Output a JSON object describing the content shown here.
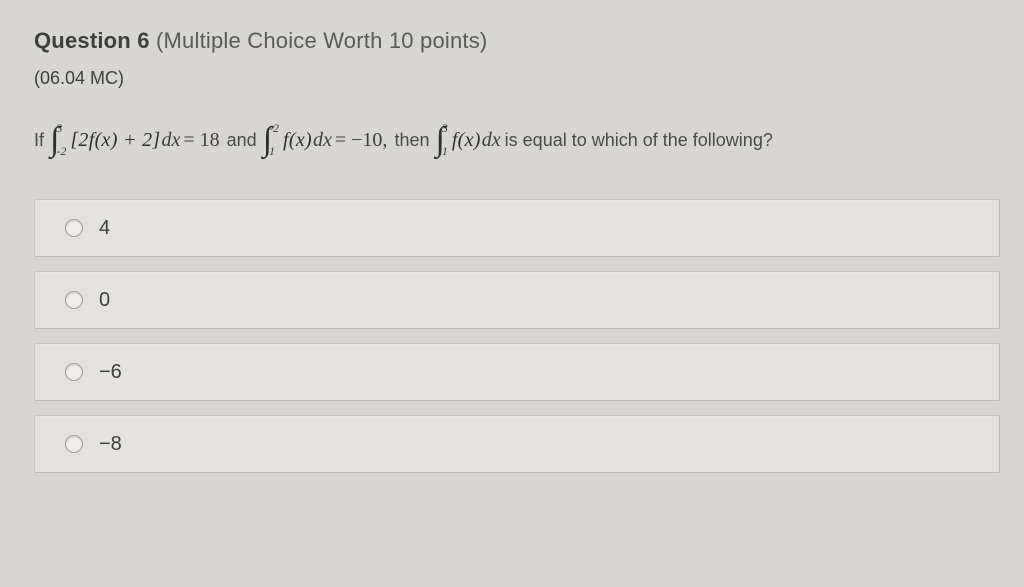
{
  "question": {
    "heading_bold": "Question 6",
    "heading_rest": "(Multiple Choice Worth 10 points)",
    "code": "(06.04 MC)",
    "stem": {
      "lead": "If",
      "int1": {
        "upper": "3",
        "lower": "-2",
        "body": "[2f(x) + 2]",
        "dx": "dx",
        "eq": "= 18"
      },
      "mid1": "and",
      "int2": {
        "upper": "-2",
        "lower": "1",
        "body": "f(x)",
        "dx": "dx",
        "eq": "= −10,"
      },
      "mid2": "then",
      "int3": {
        "upper": "3",
        "lower": "1",
        "body": "f(x)",
        "dx": "dx"
      },
      "tail": "is equal to which of the following?"
    }
  },
  "options": [
    {
      "label": "4"
    },
    {
      "label": "0"
    },
    {
      "label": "−6"
    },
    {
      "label": "−8"
    }
  ],
  "style": {
    "page_bg": "#d8d6d2",
    "option_bg": "#e4e2de",
    "option_border": "#bcbab6",
    "text_color": "#3e3e3c",
    "heading_fontsize": 22,
    "body_fontsize": 18,
    "option_fontsize": 20,
    "radio_size": 16
  }
}
